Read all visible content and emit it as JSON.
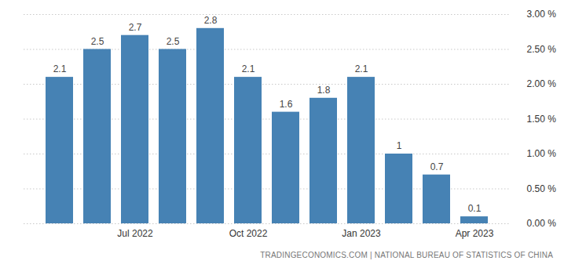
{
  "chart_data": {
    "type": "bar",
    "categories": [
      null,
      null,
      "Jul 2022",
      null,
      null,
      "Oct 2022",
      null,
      null,
      "Jan 2023",
      null,
      null,
      "Apr 2023"
    ],
    "values": [
      2.1,
      2.5,
      2.7,
      2.5,
      2.8,
      2.1,
      1.6,
      1.8,
      2.1,
      1,
      0.7,
      0.1
    ],
    "color": "#4682b4",
    "ylim": [
      0,
      3
    ],
    "yticks": [
      {
        "value": 0,
        "label": "0.00 %"
      },
      {
        "value": 0.5,
        "label": "0.50 %"
      },
      {
        "value": 1,
        "label": "1.00 %"
      },
      {
        "value": 1.5,
        "label": "1.50 %"
      },
      {
        "value": 2,
        "label": "2.00 %"
      },
      {
        "value": 2.5,
        "label": "2.50 %"
      },
      {
        "value": 3,
        "label": "3.00 %"
      }
    ],
    "grid": true,
    "data_labels": true,
    "source": "TRADINGECONOMICS.COM | NATIONAL BUREAU OF STATISTICS OF CHINA"
  }
}
